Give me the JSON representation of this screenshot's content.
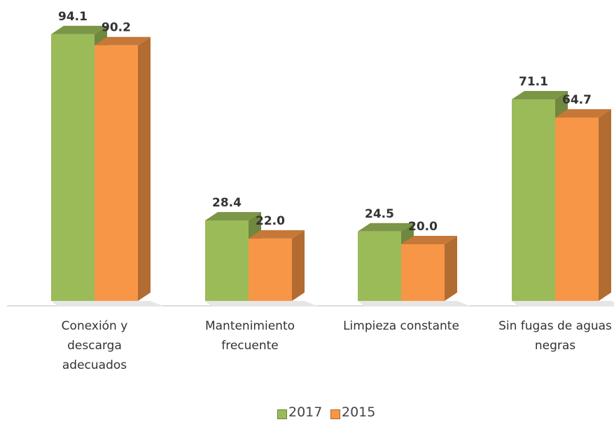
{
  "chart_data": {
    "type": "bar3d",
    "categories": [
      "Conexión y descarga adecuados",
      "Mantenimiento frecuente",
      "Limpieza constante",
      "Sin fugas de aguas negras"
    ],
    "series": [
      {
        "name": "2017",
        "color": "#9bbb59",
        "values": [
          94.1,
          28.4,
          24.5,
          71.1
        ],
        "value_labels": [
          "94.1",
          "28.4",
          "24.5",
          "71.1"
        ]
      },
      {
        "name": "2015",
        "color": "#f79646",
        "values": [
          90.2,
          22.0,
          20.0,
          64.7
        ],
        "value_labels": [
          "90.2",
          "22.0",
          "20.0",
          "64.7"
        ]
      }
    ],
    "ylim": [
      0,
      100
    ]
  }
}
